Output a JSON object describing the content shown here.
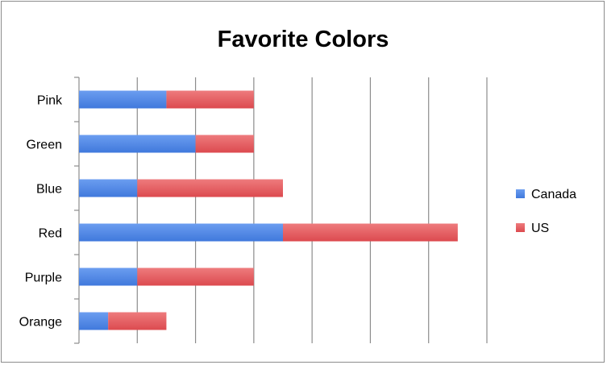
{
  "chart_data": {
    "type": "bar",
    "orientation": "horizontal",
    "stacked": true,
    "title": "Favorite Colors",
    "xlabel": "",
    "ylabel": "",
    "categories": [
      "Pink",
      "Green",
      "Blue",
      "Red",
      "Purple",
      "Orange"
    ],
    "series": [
      {
        "name": "Canada",
        "values": [
          3,
          4,
          2,
          7,
          2,
          1
        ],
        "color": "#4f86e3"
      },
      {
        "name": "US",
        "values": [
          3,
          2,
          5,
          6,
          4,
          2
        ],
        "color": "#e15a5e"
      }
    ],
    "xlim": [
      0,
      14
    ],
    "major_gridlines": true,
    "legend_position": "right"
  }
}
